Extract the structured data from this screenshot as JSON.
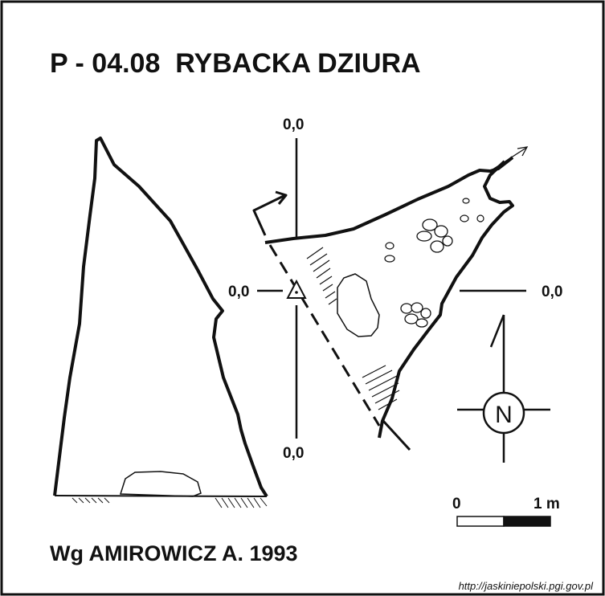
{
  "title": "P - 04.08  RYBACKA DZIURA",
  "coords": {
    "top": "0,0",
    "left": "0,0",
    "right": "0,0",
    "bottom": "0,0"
  },
  "north_letter": "N",
  "scale": {
    "start_label": "0",
    "end_label": "1 m"
  },
  "credit": "Wg AMIROWICZ A. 1993",
  "source_url": "http://jaskiniepolski.pgi.gov.pl",
  "icons": [
    "north-arrow-icon",
    "survey-station-icon",
    "entrance-arrow-icon",
    "continuation-arrow-icon"
  ]
}
